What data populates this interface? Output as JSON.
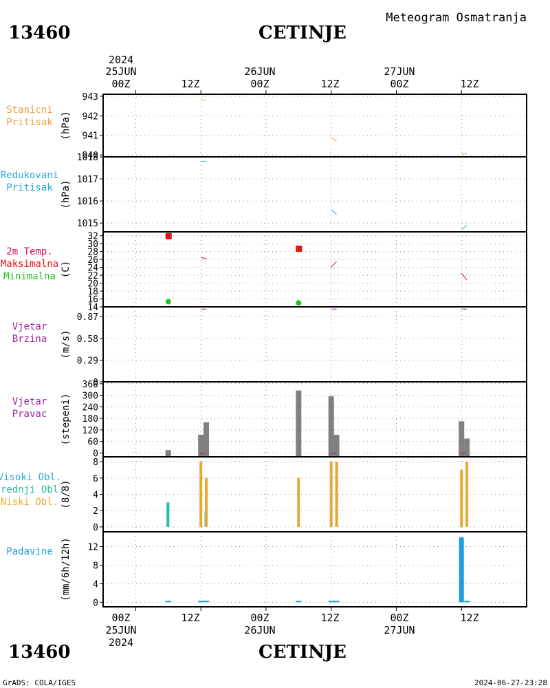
{
  "header": {
    "station_id": "13460",
    "station_name": "CETINJE",
    "product": "Meteogram Osmatranja"
  },
  "footer": {
    "station_id": "13460",
    "station_name": "CETINJE",
    "credit": "GrADS: COLA/IGES",
    "timestamp": "2024-06-27-23:28"
  },
  "time_axis": {
    "year": "2024",
    "day_labels": [
      "25JUN",
      "26JUN",
      "27JUN"
    ],
    "hour_labels": [
      "00Z",
      "12Z",
      "00Z",
      "12Z",
      "00Z",
      "12Z"
    ],
    "range_hours": [
      -6,
      72
    ]
  },
  "colors": {
    "station_pressure": "#e8a040",
    "reduced_pressure": "#2aa8d8",
    "temperature": "#cc1060",
    "temp_max": "#e81010",
    "temp_min": "#22c022",
    "wind": "#a020a0",
    "direction_bar": "#808080",
    "cloud_high": "#2aa8d8",
    "cloud_mid": "#22c0a0",
    "cloud_low": "#e8a830",
    "precip": "#1e9ee0"
  },
  "chart_data": [
    {
      "type": "line",
      "panel": "station_pressure",
      "label_lines": [
        "Stanicni",
        "Pritisak"
      ],
      "unit": "(hPa)",
      "ylim": [
        939.9,
        943.1
      ],
      "yticks": [
        940,
        941,
        942,
        943
      ],
      "grid": true,
      "series": [
        {
          "segments": [
            [
              [
                12.0,
                942.8
              ],
              [
                13.0,
                942.8
              ]
            ],
            [
              [
                36.0,
                940.9
              ],
              [
                37.0,
                940.7
              ]
            ],
            [
              [
                60.0,
                940.0
              ],
              [
                61.0,
                940.1
              ]
            ]
          ]
        }
      ]
    },
    {
      "type": "line",
      "panel": "reduced_pressure",
      "label_lines": [
        "Redukovani",
        "Pritisak"
      ],
      "unit": "(hPa)",
      "ylim": [
        1014.6,
        1018.0
      ],
      "yticks": [
        1015,
        1016,
        1017,
        1018
      ],
      "grid": true,
      "series": [
        {
          "segments": [
            [
              [
                12.0,
                1017.8
              ],
              [
                13.0,
                1017.8
              ]
            ],
            [
              [
                36.0,
                1015.6
              ],
              [
                37.0,
                1015.4
              ]
            ],
            [
              [
                60.0,
                1014.7
              ],
              [
                61.0,
                1014.9
              ]
            ]
          ]
        }
      ]
    },
    {
      "type": "line",
      "panel": "temperature",
      "label_lines": [
        "2m Temp.",
        "Maksimalna",
        "Minimalna"
      ],
      "unit": "(C)",
      "ylim": [
        14,
        33
      ],
      "yticks": [
        14,
        16,
        18,
        20,
        22,
        24,
        26,
        28,
        30,
        32
      ],
      "grid": true,
      "series": [
        {
          "name": "2m Temp.",
          "segments": [
            [
              [
                12.0,
                26.5
              ],
              [
                13.0,
                26.2
              ]
            ],
            [
              [
                36.0,
                24.0
              ],
              [
                37.0,
                25.5
              ]
            ],
            [
              [
                60.0,
                22.5
              ],
              [
                61.0,
                20.8
              ]
            ]
          ]
        }
      ],
      "max_points": [
        {
          "x": 6,
          "y": 32
        },
        {
          "x": 30,
          "y": 28.8
        }
      ],
      "min_points": [
        {
          "x": 6,
          "y": 15.3
        },
        {
          "x": 30,
          "y": 15.0
        }
      ]
    },
    {
      "type": "line",
      "panel": "wind_speed",
      "label_lines": [
        "Vjetar",
        "Brzina"
      ],
      "unit": "(m/s)",
      "ylim": [
        0,
        1.0
      ],
      "yticks": [
        0,
        0.29,
        0.58,
        0.87
      ],
      "ytick_labels": [
        "0",
        "0.29",
        "0.58",
        "0.87"
      ],
      "grid": true,
      "series": [
        {
          "segments": [
            [
              [
                12.0,
                0.97
              ],
              [
                13.0,
                0.97
              ]
            ],
            [
              [
                36.0,
                0.97
              ],
              [
                37.0,
                0.97
              ]
            ],
            [
              [
                60.0,
                0.97
              ],
              [
                61.0,
                0.97
              ]
            ]
          ]
        }
      ]
    },
    {
      "type": "bar",
      "panel": "wind_direction",
      "label_lines": [
        "Vjetar",
        "Pravac"
      ],
      "unit": "(stepeni)",
      "ylim": [
        -20,
        370
      ],
      "yticks": [
        0,
        60,
        120,
        180,
        240,
        300,
        360
      ],
      "grid": true,
      "bars": [
        {
          "x": 6,
          "value": 15
        },
        {
          "x": 12,
          "value": 95
        },
        {
          "x": 13,
          "value": 160
        },
        {
          "x": 30,
          "value": 325
        },
        {
          "x": 36,
          "value": 295
        },
        {
          "x": 37,
          "value": 95
        },
        {
          "x": 60,
          "value": 165
        },
        {
          "x": 61,
          "value": 75
        }
      ]
    },
    {
      "type": "bar",
      "panel": "clouds",
      "label_lines": [
        "Visoki Obl.",
        "Srednji Obl.",
        "Niski Obl."
      ],
      "unit": "(8/8)",
      "ylim": [
        -0.6,
        8.6
      ],
      "yticks": [
        0,
        2,
        4,
        6,
        8
      ],
      "grid": true,
      "series": [
        {
          "name": "Visoki Obl.",
          "bars": [
            {
              "x": 6,
              "value": 3
            },
            {
              "x": 13,
              "value": 2
            }
          ]
        },
        {
          "name": "Srednji Obl.",
          "bars": [
            {
              "x": 6,
              "value": 3
            },
            {
              "x": 13,
              "value": 2
            },
            {
              "x": 30,
              "value": 1
            }
          ]
        },
        {
          "name": "Niski Obl.",
          "bars": [
            {
              "x": 12,
              "value": 8
            },
            {
              "x": 13,
              "value": 6
            },
            {
              "x": 30,
              "value": 6
            },
            {
              "x": 36,
              "value": 8
            },
            {
              "x": 37,
              "value": 8
            },
            {
              "x": 60,
              "value": 7
            },
            {
              "x": 61,
              "value": 8
            }
          ]
        }
      ]
    },
    {
      "type": "bar",
      "panel": "precipitation",
      "label_lines": [
        "Padavine"
      ],
      "unit": "(mm/6h/12h)",
      "ylim": [
        -1,
        15.2
      ],
      "yticks": [
        0,
        4,
        8,
        12
      ],
      "grid": true,
      "bars": [
        {
          "x": 6,
          "value": 0.1
        },
        {
          "x": 12,
          "value": 0.1
        },
        {
          "x": 13,
          "value": 0.1
        },
        {
          "x": 30,
          "value": 0.1
        },
        {
          "x": 36,
          "value": 0.3
        },
        {
          "x": 37,
          "value": 0.1
        },
        {
          "x": 60,
          "value": 14
        },
        {
          "x": 61,
          "value": 0.1
        }
      ]
    }
  ]
}
